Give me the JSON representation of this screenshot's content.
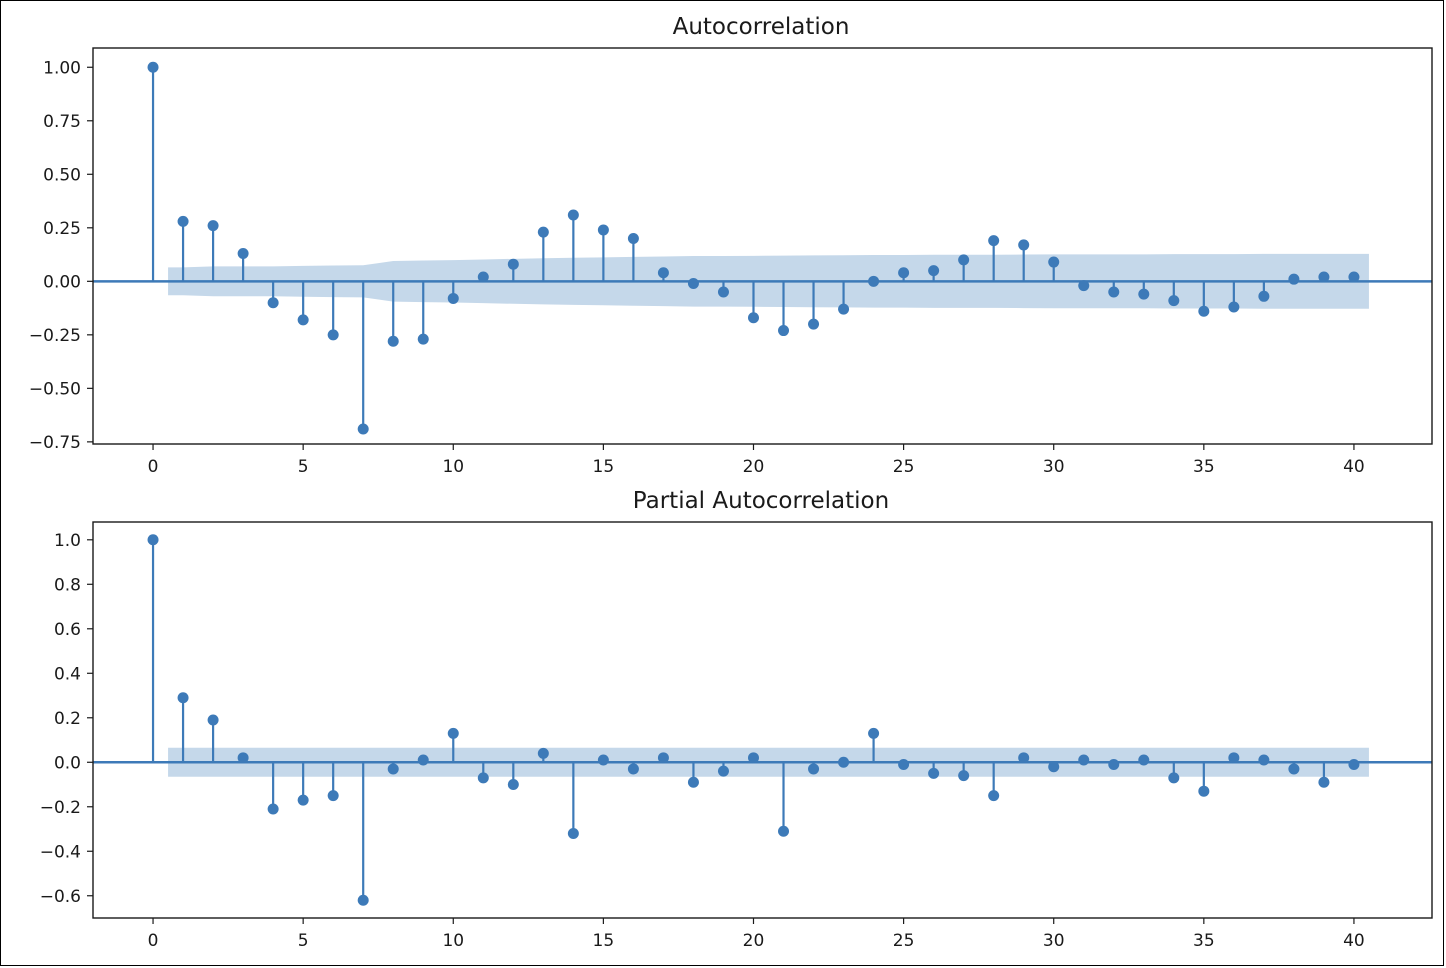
{
  "colors": {
    "stem": "#3d7ab8",
    "band": "#c5d8ea",
    "axis": "#1a1a1a"
  },
  "chart_data": [
    {
      "type": "stem",
      "title": "Autocorrelation",
      "xlim": [
        -2,
        42.6
      ],
      "ylim": [
        -0.76,
        1.09
      ],
      "xticks": [
        0,
        5,
        10,
        15,
        20,
        25,
        30,
        35,
        40
      ],
      "yticks": [
        -0.75,
        -0.5,
        -0.25,
        0.0,
        0.25,
        0.5,
        0.75,
        1.0
      ],
      "ytick_labels": [
        "−0.75",
        "−0.50",
        "−0.25",
        "0.00",
        "0.25",
        "0.50",
        "0.75",
        "1.00"
      ],
      "x": [
        0,
        1,
        2,
        3,
        4,
        5,
        6,
        7,
        8,
        9,
        10,
        11,
        12,
        13,
        14,
        15,
        16,
        17,
        18,
        19,
        20,
        21,
        22,
        23,
        24,
        25,
        26,
        27,
        28,
        29,
        30,
        31,
        32,
        33,
        34,
        35,
        36,
        37,
        38,
        39,
        40
      ],
      "values": [
        1.0,
        0.28,
        0.26,
        0.13,
        -0.1,
        -0.18,
        -0.25,
        -0.69,
        -0.28,
        -0.27,
        -0.08,
        0.02,
        0.08,
        0.23,
        0.31,
        0.24,
        0.2,
        0.04,
        -0.01,
        -0.05,
        -0.17,
        -0.23,
        -0.2,
        -0.13,
        0.0,
        0.04,
        0.05,
        0.1,
        0.19,
        0.17,
        0.09,
        -0.02,
        -0.05,
        -0.06,
        -0.09,
        -0.14,
        -0.12,
        -0.07,
        0.01,
        0.02,
        0.02
      ],
      "confint": {
        "x": [
          0.5,
          1,
          2,
          3,
          4,
          5,
          6,
          7,
          8,
          9,
          10,
          11,
          12,
          13,
          14,
          15,
          16,
          17,
          18,
          19,
          20,
          21,
          22,
          23,
          24,
          25,
          26,
          27,
          28,
          29,
          30,
          31,
          32,
          33,
          34,
          35,
          36,
          37,
          38,
          39,
          40,
          40.5
        ],
        "upper": [
          0.065,
          0.065,
          0.07,
          0.07,
          0.07,
          0.072,
          0.074,
          0.075,
          0.095,
          0.097,
          0.099,
          0.102,
          0.105,
          0.108,
          0.11,
          0.112,
          0.114,
          0.116,
          0.118,
          0.118,
          0.119,
          0.12,
          0.121,
          0.122,
          0.123,
          0.123,
          0.124,
          0.124,
          0.124,
          0.125,
          0.126,
          0.126,
          0.126,
          0.126,
          0.127,
          0.127,
          0.127,
          0.128,
          0.128,
          0.128,
          0.128,
          0.128
        ]
      }
    },
    {
      "type": "stem",
      "title": "Partial Autocorrelation",
      "xlim": [
        -2,
        42.6
      ],
      "ylim": [
        -0.7,
        1.08
      ],
      "xticks": [
        0,
        5,
        10,
        15,
        20,
        25,
        30,
        35,
        40
      ],
      "yticks": [
        -0.6,
        -0.4,
        -0.2,
        0.0,
        0.2,
        0.4,
        0.6,
        0.8,
        1.0
      ],
      "ytick_labels": [
        "−0.6",
        "−0.4",
        "−0.2",
        "0.0",
        "0.2",
        "0.4",
        "0.6",
        "0.8",
        "1.0"
      ],
      "x": [
        0,
        1,
        2,
        3,
        4,
        5,
        6,
        7,
        8,
        9,
        10,
        11,
        12,
        13,
        14,
        15,
        16,
        17,
        18,
        19,
        20,
        21,
        22,
        23,
        24,
        25,
        26,
        27,
        28,
        29,
        30,
        31,
        32,
        33,
        34,
        35,
        36,
        37,
        38,
        39,
        40
      ],
      "values": [
        1.0,
        0.29,
        0.19,
        0.02,
        -0.21,
        -0.17,
        -0.15,
        -0.62,
        -0.03,
        0.01,
        0.13,
        -0.07,
        -0.1,
        0.04,
        -0.32,
        0.01,
        -0.03,
        0.02,
        -0.09,
        -0.04,
        0.02,
        -0.31,
        -0.03,
        0.0,
        0.13,
        -0.01,
        -0.05,
        -0.06,
        -0.15,
        0.02,
        -0.02,
        0.01,
        -0.01,
        0.01,
        -0.07,
        -0.13,
        0.02,
        0.01,
        -0.03,
        -0.09,
        -0.01
      ],
      "confint": {
        "x": [
          0.5,
          40.5
        ],
        "upper": [
          0.065,
          0.065
        ]
      }
    }
  ]
}
